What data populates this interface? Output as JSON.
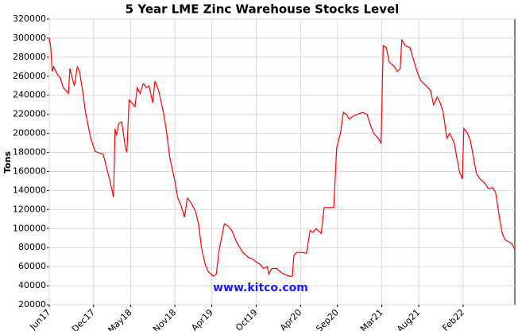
{
  "chart_data": {
    "type": "line",
    "title": "5 Year LME Zinc Warehouse Stocks Level",
    "y_label": "Tons",
    "annotation": "www.kitco.com",
    "xlim": [
      0,
      63
    ],
    "xticks": [
      {
        "value": 0,
        "label": "Jun17"
      },
      {
        "value": 6,
        "label": "Dec17"
      },
      {
        "value": 11,
        "label": "May18"
      },
      {
        "value": 17,
        "label": "Nov18"
      },
      {
        "value": 22,
        "label": "Apr19"
      },
      {
        "value": 28,
        "label": "Oct19"
      },
      {
        "value": 34,
        "label": "Apr20"
      },
      {
        "value": 39,
        "label": "Sep20"
      },
      {
        "value": 45,
        "label": "Mar21"
      },
      {
        "value": 50,
        "label": "Aug21"
      },
      {
        "value": 56,
        "label": "Feb22"
      }
    ],
    "ylim": [
      20000,
      320000
    ],
    "yticks": [
      20000,
      40000,
      60000,
      80000,
      100000,
      120000,
      140000,
      160000,
      180000,
      200000,
      220000,
      240000,
      260000,
      280000,
      300000,
      320000
    ],
    "grid": true,
    "series": [
      {
        "color": "#ff0000",
        "x": [
          0,
          0.2,
          0.4,
          0.6,
          1.1,
          1.5,
          1.9,
          2.6,
          2.8,
          3.2,
          3.4,
          3.8,
          4.1,
          4.5,
          4.9,
          5.6,
          6.2,
          7.3,
          8.2,
          8.7,
          8.9,
          9.1,
          9.4,
          9.8,
          10.3,
          10.5,
          10.8,
          11.2,
          11.6,
          11.9,
          12.3,
          12.7,
          13.2,
          13.5,
          14.0,
          14.3,
          14.8,
          15.5,
          15.9,
          16.3,
          17.0,
          17.4,
          17.8,
          18.3,
          18.7,
          19.1,
          19.8,
          20.2,
          20.6,
          21.1,
          21.5,
          22.2,
          22.6,
          23.0,
          23.7,
          24.3,
          24.7,
          25.4,
          25.8,
          26.2,
          26.9,
          27.5,
          28.0,
          28.6,
          29.0,
          29.5,
          29.7,
          30.1,
          30.8,
          31.2,
          31.8,
          32.5,
          32.9,
          33.1,
          33.5,
          34.2,
          34.8,
          35.3,
          35.7,
          36.1,
          36.8,
          37.2,
          37.8,
          38.5,
          38.9,
          39.4,
          39.8,
          40.2,
          40.6,
          41.1,
          41.7,
          42.4,
          43.0,
          43.4,
          43.9,
          44.5,
          44.9,
          45.2,
          45.6,
          46.0,
          46.7,
          47.1,
          47.5,
          47.7,
          48.2,
          48.8,
          49.2,
          49.9,
          50.3,
          51.0,
          51.6,
          52.0,
          52.5,
          52.9,
          53.3,
          53.8,
          54.2,
          54.8,
          55.5,
          55.9,
          56.1,
          56.6,
          57.0,
          57.4,
          57.8,
          58.3,
          58.9,
          59.4,
          60.0,
          60.4,
          60.9,
          61.3,
          61.7,
          62.2,
          62.6,
          63.0
        ],
        "values": [
          300000,
          290000,
          265000,
          270000,
          262000,
          258000,
          248000,
          242000,
          268000,
          255000,
          250000,
          270000,
          265000,
          245000,
          222000,
          195000,
          181000,
          178000,
          150000,
          133000,
          205000,
          198000,
          210000,
          212000,
          185000,
          180000,
          235000,
          232000,
          228000,
          248000,
          242000,
          252000,
          248000,
          250000,
          232000,
          255000,
          245000,
          220000,
          200000,
          175000,
          150000,
          132000,
          125000,
          112000,
          132000,
          128000,
          118000,
          105000,
          80000,
          62000,
          55000,
          50000,
          52000,
          78000,
          105000,
          102000,
          98000,
          85000,
          80000,
          75000,
          70000,
          68000,
          65000,
          62000,
          58000,
          60000,
          52000,
          58000,
          58000,
          55000,
          52000,
          50000,
          50000,
          72000,
          75000,
          75000,
          74000,
          98000,
          96000,
          100000,
          95000,
          122000,
          122000,
          122000,
          185000,
          200000,
          222000,
          220000,
          215000,
          218000,
          220000,
          222000,
          220000,
          210000,
          200000,
          195000,
          190000,
          292000,
          290000,
          275000,
          270000,
          265000,
          268000,
          298000,
          292000,
          290000,
          280000,
          262000,
          255000,
          250000,
          245000,
          230000,
          238000,
          232000,
          222000,
          195000,
          200000,
          190000,
          160000,
          152000,
          205000,
          200000,
          192000,
          175000,
          158000,
          152000,
          148000,
          142000,
          143000,
          138000,
          112000,
          95000,
          88000,
          86000,
          84000,
          78000
        ]
      }
    ]
  }
}
